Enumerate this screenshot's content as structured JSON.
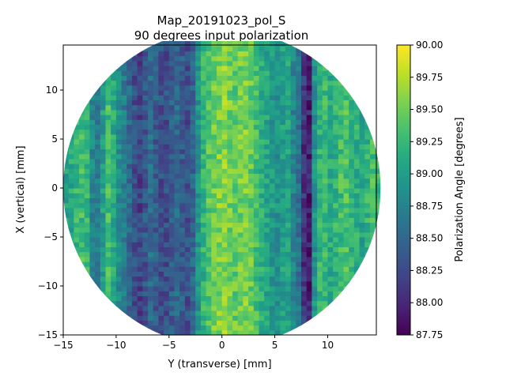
{
  "chart_data": {
    "type": "heatmap",
    "title": "Map_20191023_pol_S",
    "subtitle": "90 degrees input polarization",
    "xlabel": "Y (transverse) [mm]",
    "ylabel": "X (vertical) [mm]",
    "xlim": [
      -15,
      14.6
    ],
    "ylim": [
      -15,
      14.6
    ],
    "x_ticks": [
      -15,
      -10,
      -5,
      0,
      5,
      10
    ],
    "x_tick_labels": [
      "−15",
      "−10",
      "−5",
      "0",
      "5",
      "10"
    ],
    "y_ticks": [
      -15,
      -10,
      -5,
      0,
      5,
      10
    ],
    "y_tick_labels": [
      "−15",
      "−10",
      "−5",
      "0",
      "5",
      "10"
    ],
    "colorbar": {
      "label": "Polarization Angle [degrees]",
      "min": 87.75,
      "max": 90.0,
      "ticks": [
        87.75,
        88.0,
        88.25,
        88.5,
        88.75,
        89.0,
        89.25,
        89.5,
        89.75,
        90.0
      ],
      "tick_labels": [
        "87.75",
        "88.00",
        "88.25",
        "88.50",
        "88.75",
        "89.00",
        "89.25",
        "89.50",
        "89.75",
        "90.00"
      ],
      "colormap": "viridis"
    },
    "mask": {
      "shape": "circle",
      "center": [
        0,
        0
      ],
      "radius": 15
    },
    "column_profile": {
      "description_x_mm": [
        -15,
        -14.5,
        -14,
        -13.5,
        -13,
        -12.5,
        -12,
        -11.5,
        -11,
        -10.5,
        -10,
        -9.5,
        -9,
        -8.5,
        -8,
        -7.5,
        -7,
        -6.5,
        -6,
        -5.5,
        -5,
        -4.5,
        -4,
        -3.5,
        -3,
        -2.5,
        -2,
        -1.5,
        -1,
        -0.5,
        0,
        0.5,
        1,
        1.5,
        2,
        2.5,
        3,
        3.5,
        4,
        4.5,
        5,
        5.5,
        6,
        6.5,
        7,
        7.5,
        8,
        8.5,
        9,
        9.5,
        10,
        10.5,
        11,
        11.5,
        12,
        12.5,
        13,
        13.5,
        14,
        14.5
      ],
      "angle_deg": [
        89.0,
        89.1,
        89.25,
        89.3,
        89.2,
        88.8,
        88.7,
        89.0,
        89.3,
        89.1,
        88.85,
        88.7,
        88.5,
        88.3,
        88.2,
        88.35,
        88.55,
        88.4,
        88.3,
        88.3,
        88.4,
        88.5,
        88.4,
        88.3,
        88.5,
        88.9,
        89.2,
        89.4,
        89.5,
        89.55,
        89.6,
        89.5,
        89.45,
        89.5,
        89.55,
        89.45,
        89.3,
        89.15,
        89.05,
        88.95,
        88.9,
        89.0,
        89.05,
        88.75,
        88.6,
        88.1,
        87.95,
        88.9,
        89.2,
        89.25,
        89.1,
        89.2,
        89.3,
        89.35,
        89.2,
        89.15,
        89.05,
        89.2,
        89.3,
        89.25
      ]
    }
  }
}
